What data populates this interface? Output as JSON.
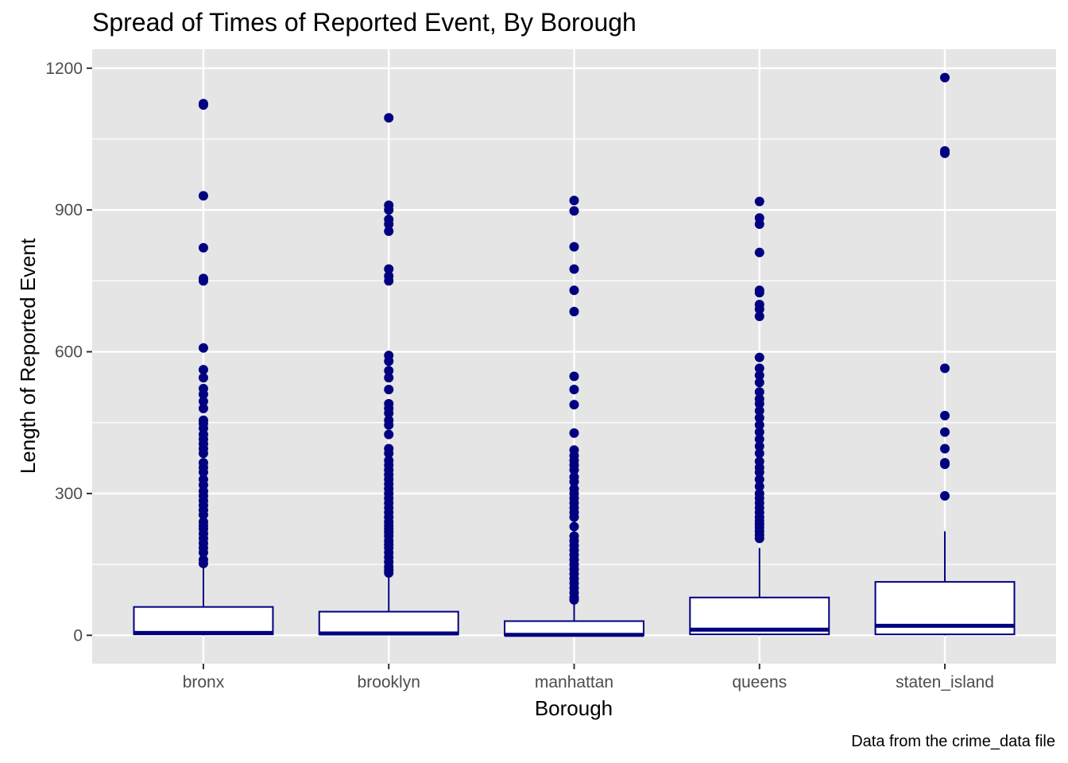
{
  "chart_data": {
    "type": "boxplot",
    "title": "Spread of Times of Reported Event, By Borough",
    "xlabel": "Borough",
    "ylabel": "Length of Reported Event",
    "caption": "Data from the crime_data file",
    "categories": [
      "bronx",
      "brooklyn",
      "manhattan",
      "queens",
      "staten_island"
    ],
    "ylim": [
      -60,
      1240
    ],
    "yticks": [
      0,
      300,
      600,
      900,
      1200
    ],
    "ytick_labels": [
      "0",
      "300",
      "600",
      "900",
      "1200"
    ],
    "grid": true,
    "colors": {
      "panel": "#e5e5e5",
      "grid": "#ffffff",
      "box_line": "#000080",
      "box_fill": "#ffffff",
      "outlier": "#000080"
    },
    "boxes": [
      {
        "category": "bronx",
        "whisker_low": 0,
        "q1": 2,
        "median": 5,
        "q3": 60,
        "whisker_high": 148,
        "outliers": [
          1125,
          1122,
          930,
          820,
          755,
          750,
          608,
          562,
          545,
          522,
          510,
          495,
          480,
          455,
          448,
          438,
          425,
          415,
          405,
          395,
          385,
          365,
          355,
          345,
          330,
          318,
          305,
          295,
          285,
          275,
          265,
          255,
          240,
          232,
          225,
          215,
          205,
          195,
          185,
          175,
          160,
          152
        ]
      },
      {
        "category": "brooklyn",
        "whisker_low": 0,
        "q1": 2,
        "median": 4,
        "q3": 50,
        "whisker_high": 128,
        "outliers": [
          1095,
          910,
          900,
          880,
          870,
          855,
          775,
          760,
          750,
          592,
          580,
          560,
          545,
          520,
          490,
          480,
          470,
          455,
          445,
          425,
          395,
          385,
          370,
          360,
          350,
          340,
          330,
          320,
          310,
          300,
          290,
          280,
          270,
          260,
          250,
          240,
          232,
          225,
          218,
          210,
          200,
          192,
          185,
          175,
          165,
          155,
          145,
          138,
          132
        ]
      },
      {
        "category": "manhattan",
        "whisker_low": 0,
        "q1": 0,
        "median": 1,
        "q3": 30,
        "whisker_high": 72,
        "outliers": [
          920,
          898,
          822,
          775,
          730,
          685,
          548,
          520,
          488,
          428,
          392,
          380,
          370,
          360,
          350,
          335,
          325,
          310,
          300,
          290,
          280,
          270,
          260,
          250,
          230,
          210,
          200,
          190,
          180,
          170,
          160,
          150,
          140,
          130,
          120,
          110,
          100,
          90,
          80,
          75
        ]
      },
      {
        "category": "queens",
        "whisker_low": 0,
        "q1": 2,
        "median": 12,
        "q3": 80,
        "whisker_high": 185,
        "outliers": [
          918,
          883,
          870,
          810,
          730,
          725,
          700,
          690,
          675,
          588,
          565,
          550,
          535,
          515,
          500,
          490,
          475,
          460,
          445,
          430,
          415,
          400,
          385,
          368,
          355,
          345,
          330,
          315,
          300,
          290,
          280,
          270,
          260,
          250,
          242,
          235,
          228,
          220,
          212,
          205
        ]
      },
      {
        "category": "staten_island",
        "whisker_low": 0,
        "q1": 2,
        "median": 20,
        "q3": 113,
        "whisker_high": 220,
        "outliers": [
          1180,
          1025,
          1020,
          565,
          465,
          430,
          395,
          365,
          362,
          295
        ]
      }
    ]
  }
}
